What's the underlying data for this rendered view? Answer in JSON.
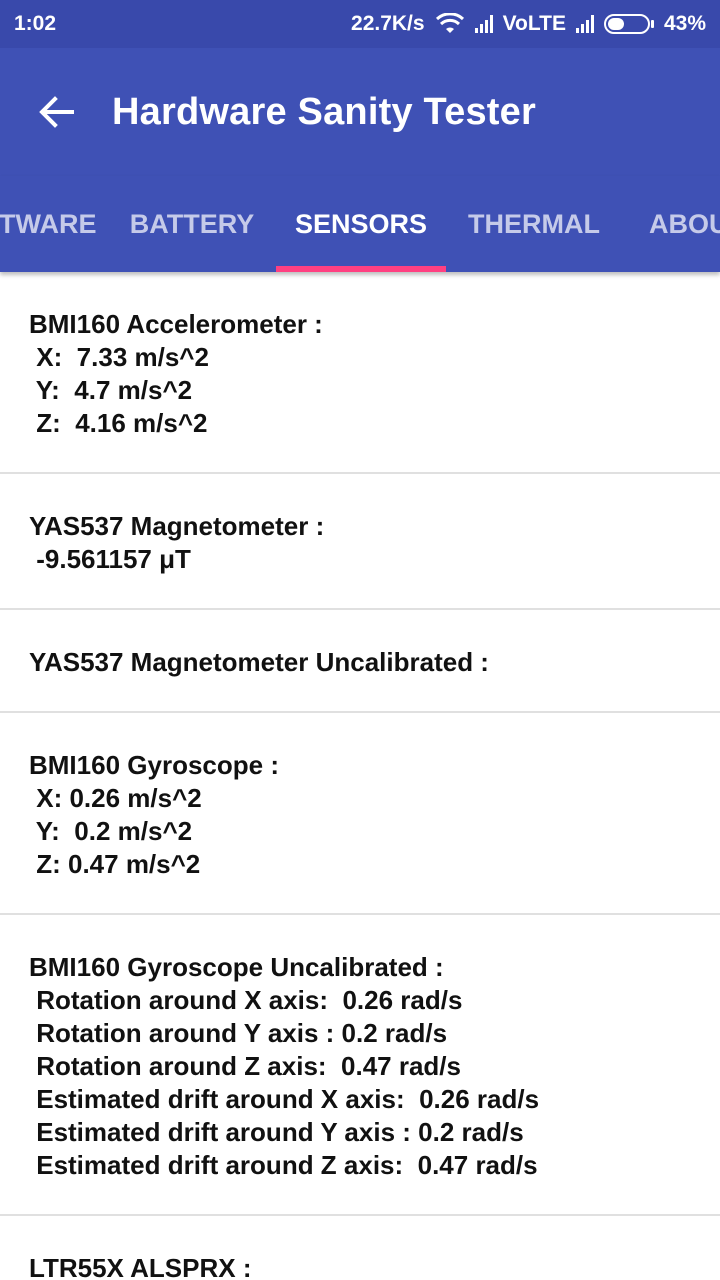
{
  "status_bar": {
    "time": "1:02",
    "speed": "22.7K/s",
    "network": "VoLTE",
    "battery": "43%",
    "battery_level": 0.43
  },
  "app_bar": {
    "title": "Hardware Sanity Tester"
  },
  "tabs": [
    {
      "label": "SOFTWARE",
      "active": false
    },
    {
      "label": "BATTERY",
      "active": false
    },
    {
      "label": "SENSORS",
      "active": true
    },
    {
      "label": "THERMAL",
      "active": false
    },
    {
      "label": "ABOUT",
      "active": false
    }
  ],
  "sensors": [
    {
      "title": "BMI160 Accelerometer :",
      "lines": [
        " X:  7.33 m/s^2",
        " Y:  4.7 m/s^2",
        " Z:  4.16 m/s^2"
      ]
    },
    {
      "title": "YAS537 Magnetometer :",
      "lines": [
        " -9.561157 μT"
      ]
    },
    {
      "title": "YAS537 Magnetometer Uncalibrated :",
      "lines": []
    },
    {
      "title": "BMI160 Gyroscope :",
      "lines": [
        " X: 0.26 m/s^2",
        " Y:  0.2 m/s^2",
        " Z: 0.47 m/s^2"
      ]
    },
    {
      "title": "BMI160 Gyroscope Uncalibrated :",
      "lines": [
        " Rotation around X axis:  0.26 rad/s",
        " Rotation around Y axis : 0.2 rad/s",
        " Rotation around Z axis:  0.47 rad/s",
        " Estimated drift around X axis:  0.26 rad/s",
        " Estimated drift around Y axis : 0.2 rad/s",
        " Estimated drift around Z axis:  0.47 rad/s"
      ]
    },
    {
      "title": "LTR55X ALSPRX :",
      "lines": []
    }
  ]
}
